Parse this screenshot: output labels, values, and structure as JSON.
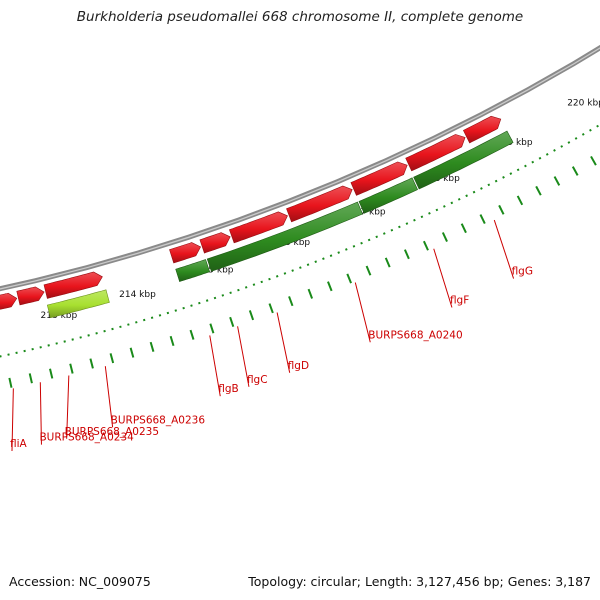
{
  "title": "Burkholderia pseudomallei 668 chromosome II, complete genome",
  "accession": {
    "label": "Accession:",
    "value": "NC_009075"
  },
  "summary": {
    "topology_label": "Topology:",
    "topology": "circular;",
    "length_label": "Length:",
    "length": "3,127,456 bp;",
    "genes_label": "Genes:",
    "genes": "3,187"
  },
  "colors": {
    "cds_red": "#e8141c",
    "gene_dark_green": "#2e8b1f",
    "gene_light_green": "#a8e030",
    "gene_orange": "#ff8a14",
    "backbone": "#8a8a8a",
    "tick_green": "#1a8a1a",
    "label_red": "#cc0000"
  },
  "gene_labels": [
    {
      "text": "fliA",
      "lead_start_kbp": 212.27,
      "lead_end_kbp": 212.1
    },
    {
      "text": "BURPS668_A0234",
      "lead_start_kbp": 212.6,
      "lead_end_kbp": 212.45
    },
    {
      "text": "BURPS668_A0235",
      "lead_start_kbp": 212.95,
      "lead_end_kbp": 212.75
    },
    {
      "text": "BURPS668_A0236",
      "lead_start_kbp": 213.4,
      "lead_end_kbp": 213.3
    },
    {
      "text": "flgB",
      "lead_start_kbp": 214.7,
      "lead_end_kbp": 214.6
    },
    {
      "text": "flgC",
      "lead_start_kbp": 215.05,
      "lead_end_kbp": 214.95
    },
    {
      "text": "flgD",
      "lead_start_kbp": 215.55,
      "lead_end_kbp": 215.45
    },
    {
      "text": "BURPS668_A0240",
      "lead_start_kbp": 216.55,
      "lead_end_kbp": 216.45
    },
    {
      "text": "flgF",
      "lead_start_kbp": 217.57,
      "lead_end_kbp": 217.48
    },
    {
      "text": "flgG",
      "lead_start_kbp": 218.37,
      "lead_end_kbp": 218.27
    }
  ],
  "kbp_labels": [
    {
      "text": "213 kbp",
      "kbp": 213
    },
    {
      "text": "214 kbp",
      "kbp": 214
    },
    {
      "text": "215 kbp",
      "kbp": 215
    },
    {
      "text": "216 kbp",
      "kbp": 216
    },
    {
      "text": "217 kbp",
      "kbp": 217
    },
    {
      "text": "218 kbp",
      "kbp": 218
    },
    {
      "text": "219 kbp",
      "kbp": 219
    },
    {
      "text": "220 kbp",
      "kbp": 220
    }
  ],
  "gene_track": [
    {
      "start": 211.8,
      "end": 212.22,
      "color": "orange"
    },
    {
      "start": 212.9,
      "end": 213.65,
      "color": "light_green"
    },
    {
      "start": 214.55,
      "end": 214.94,
      "color": "dark_green"
    },
    {
      "start": 214.96,
      "end": 216.95,
      "color": "dark_green"
    },
    {
      "start": 216.97,
      "end": 217.69,
      "color": "dark_green"
    },
    {
      "start": 217.71,
      "end": 219.0,
      "color": "dark_green"
    }
  ],
  "cds_track": [
    {
      "start": 211.8,
      "end": 212.2
    },
    {
      "start": 212.25,
      "end": 212.55
    },
    {
      "start": 212.57,
      "end": 212.9
    },
    {
      "start": 212.92,
      "end": 213.65
    },
    {
      "start": 214.55,
      "end": 214.93
    },
    {
      "start": 214.95,
      "end": 215.32
    },
    {
      "start": 215.34,
      "end": 216.08
    },
    {
      "start": 216.1,
      "end": 216.95
    },
    {
      "start": 216.97,
      "end": 217.7
    },
    {
      "start": 217.72,
      "end": 218.5
    },
    {
      "start": 218.52,
      "end": 219.0
    }
  ]
}
